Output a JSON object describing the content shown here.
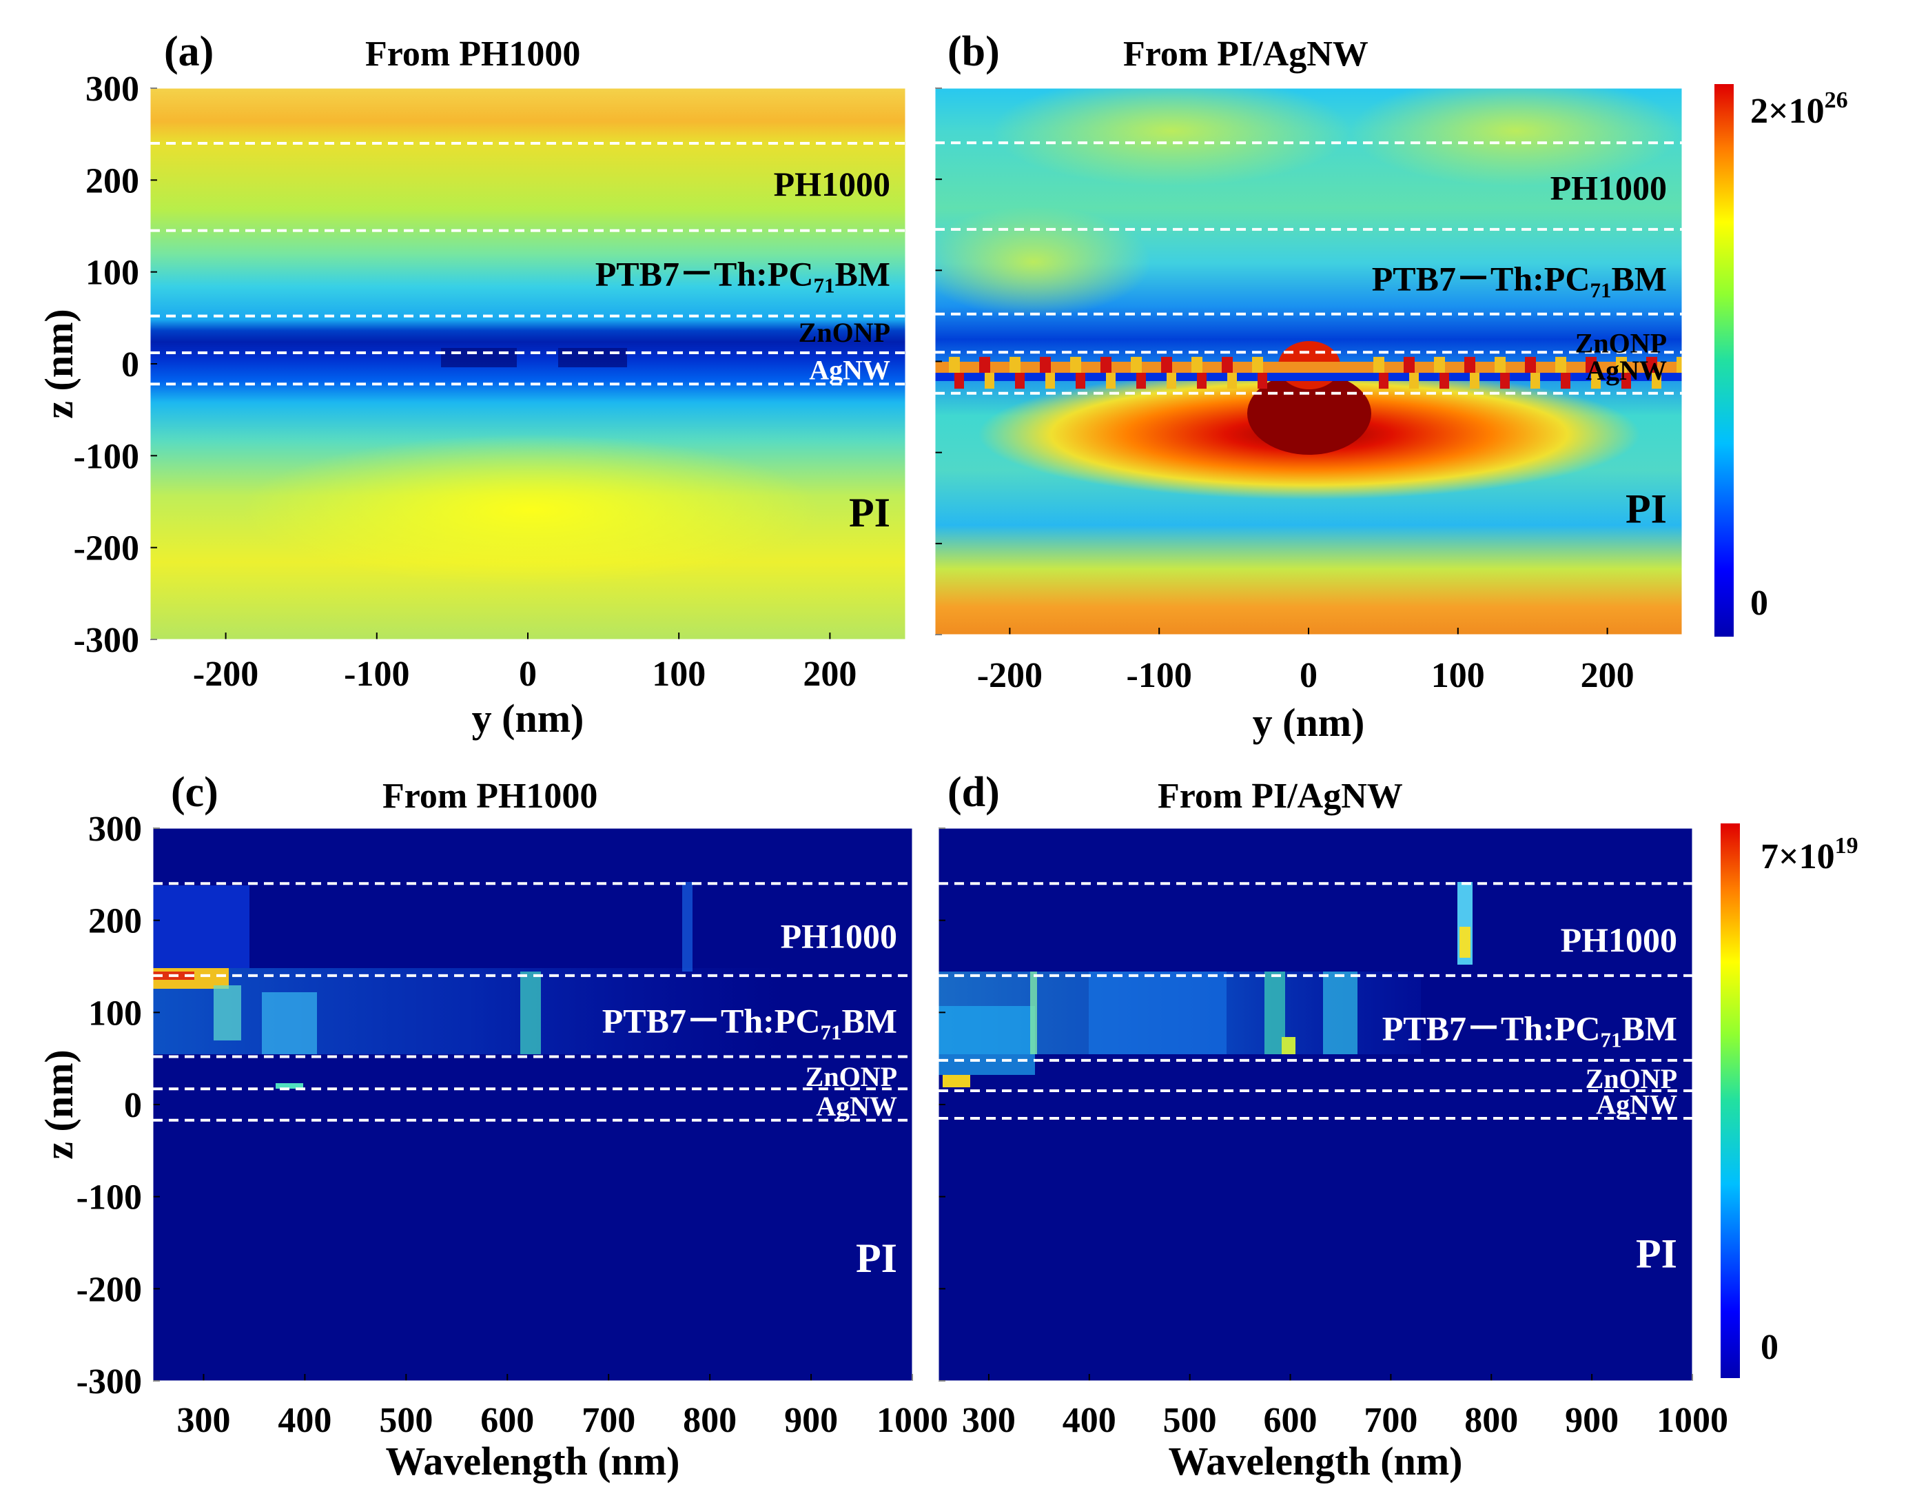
{
  "chart_data": [
    {
      "type": "heatmap",
      "panel": "(a)",
      "title": "From PH1000",
      "xlabel": "y (nm)",
      "ylabel": "z (nm)",
      "xlim": [
        -250,
        250
      ],
      "ylim": [
        -300,
        300
      ],
      "xticks": [
        -200,
        -100,
        0,
        100,
        200
      ],
      "yticks": [
        300,
        200,
        100,
        0,
        -100,
        -200,
        -300
      ],
      "show_y_labels": true,
      "layer_boundaries_nm": [
        240,
        145,
        52,
        12,
        -22
      ],
      "layers": [
        {
          "label": "PH1000",
          "z": 195,
          "color": "#000000"
        },
        {
          "label": "PTB7－Th:PC71BM",
          "z": 97,
          "color": "#000000"
        },
        {
          "label": "ZnONP",
          "z": 36,
          "color": "#000000"
        },
        {
          "label": "AgNW",
          "z": -5,
          "color": "#ffffff"
        },
        {
          "label": "PI",
          "z": -165,
          "color": "#000000"
        }
      ],
      "colorbar": null
    },
    {
      "type": "heatmap",
      "panel": "(b)",
      "title": "From PI/AgNW",
      "xlabel": "y (nm)",
      "ylabel": "",
      "xlim": [
        -250,
        250
      ],
      "ylim": [
        -300,
        300
      ],
      "xticks": [
        -200,
        -100,
        0,
        100,
        200
      ],
      "yticks": [
        300,
        200,
        100,
        0,
        -100,
        -200,
        -300
      ],
      "show_y_labels": false,
      "layer_boundaries_nm": [
        240,
        145,
        52,
        10,
        -35
      ],
      "layers": [
        {
          "label": "PH1000",
          "z": 190,
          "color": "#000000"
        },
        {
          "label": "PTB7－Th:PC71BM",
          "z": 90,
          "color": "#000000"
        },
        {
          "label": "ZnONP",
          "z": 22,
          "color": "#000000"
        },
        {
          "label": "AgNW",
          "z": -8,
          "color": "#000000"
        },
        {
          "label": "PI",
          "z": -165,
          "color": "#000000"
        }
      ],
      "colorbar": {
        "max_label": "2×10",
        "max_exp": "26",
        "min_label": "0"
      }
    },
    {
      "type": "heatmap",
      "panel": "(c)",
      "title": "From PH1000",
      "xlabel": "Wavelength (nm)",
      "ylabel": "z (nm)",
      "xlim": [
        250,
        1000
      ],
      "ylim": [
        -300,
        300
      ],
      "xticks": [
        300,
        400,
        500,
        600,
        700,
        800,
        900,
        1000
      ],
      "yticks": [
        300,
        200,
        100,
        0,
        -100,
        -200,
        -300
      ],
      "show_y_labels": true,
      "layer_boundaries_nm": [
        240,
        140,
        52,
        17,
        -17
      ],
      "layers": [
        {
          "label": "PH1000",
          "z": 182,
          "color": "#ffffff"
        },
        {
          "label": "PTB7－Th:PC71BM",
          "z": 90,
          "color": "#ffffff"
        },
        {
          "label": "ZnONP",
          "z": 32,
          "color": "#ffffff"
        },
        {
          "label": "AgNW",
          "z": 0,
          "color": "#ffffff"
        },
        {
          "label": "PI",
          "z": -170,
          "color": "#ffffff"
        }
      ],
      "colorbar": null
    },
    {
      "type": "heatmap",
      "panel": "(d)",
      "title": "From PI/AgNW",
      "xlabel": "Wavelength (nm)",
      "ylabel": "",
      "xlim": [
        250,
        1000
      ],
      "ylim": [
        -300,
        300
      ],
      "xticks": [
        300,
        400,
        500,
        600,
        700,
        800,
        900,
        1000
      ],
      "yticks": [
        300,
        200,
        100,
        0,
        -100,
        -200,
        -300
      ],
      "show_y_labels": false,
      "layer_boundaries_nm": [
        240,
        140,
        48,
        15,
        -15
      ],
      "layers": [
        {
          "label": "PH1000",
          "z": 178,
          "color": "#ffffff"
        },
        {
          "label": "PTB7－Th:PC71BM",
          "z": 82,
          "color": "#ffffff"
        },
        {
          "label": "ZnONP",
          "z": 30,
          "color": "#ffffff"
        },
        {
          "label": "AgNW",
          "z": 2,
          "color": "#ffffff"
        },
        {
          "label": "PI",
          "z": -165,
          "color": "#ffffff"
        }
      ],
      "colorbar": {
        "max_label": "7×10",
        "max_exp": "19",
        "min_label": "0"
      }
    }
  ]
}
